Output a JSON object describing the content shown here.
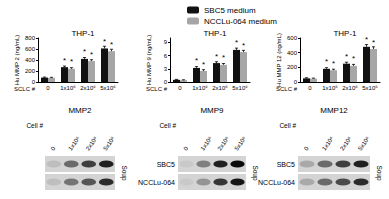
{
  "chart_data": [
    {
      "type": "bar",
      "title": "THP-1",
      "y_label": "Hu MMP 2 (ng/mL)",
      "x_label": "SCLC #",
      "categories": [
        "0",
        "1x10⁶",
        "2x10⁶",
        "5x10⁶"
      ],
      "series": [
        {
          "name": "SBC5 medium",
          "color": "#111111",
          "values": [
            80,
            270,
            420,
            610
          ],
          "errors": [
            10,
            20,
            25,
            40
          ],
          "significance": [
            null,
            "*",
            "*",
            "*"
          ]
        },
        {
          "name": "NCCLu-064 medium",
          "color": "#a6a6a6",
          "values": [
            75,
            240,
            380,
            560
          ],
          "errors": [
            10,
            20,
            25,
            35
          ],
          "significance": [
            null,
            "*",
            "*",
            "*"
          ]
        }
      ],
      "ylim": [
        0,
        800
      ],
      "yticks": [
        0,
        200,
        400,
        600,
        800
      ],
      "grid": false
    },
    {
      "type": "bar",
      "title": "THP-1",
      "y_label": "Hu MMP 9 (ng/mL)",
      "x_label": "SCLC #",
      "categories": [
        "0",
        "1x10⁶",
        "2x10⁶",
        "5x10⁶"
      ],
      "series": [
        {
          "name": "SBC5 medium",
          "color": "#111111",
          "values": [
            0.5,
            3.2,
            4.3,
            7.3
          ],
          "errors": [
            0.1,
            0.3,
            0.3,
            0.4
          ],
          "significance": [
            null,
            "*",
            "*",
            "*"
          ]
        },
        {
          "name": "NCCLu-064 medium",
          "color": "#a6a6a6",
          "values": [
            0.4,
            2.5,
            3.9,
            6.8
          ],
          "errors": [
            0.1,
            0.3,
            0.3,
            0.4
          ],
          "significance": [
            null,
            "*",
            "*",
            "*"
          ]
        }
      ],
      "ylim": [
        0,
        10
      ],
      "yticks": [
        0,
        3,
        6,
        9
      ],
      "grid": false,
      "legend": "top"
    },
    {
      "type": "bar",
      "title": "THP-1",
      "y_label": "Hu MMP 12 (ng/mL)",
      "x_label": "SCLC #",
      "categories": [
        "0",
        "1x10⁶",
        "2x10⁶",
        "5x10⁶"
      ],
      "series": [
        {
          "name": "SBC5 medium",
          "color": "#111111",
          "values": [
            50,
            180,
            250,
            480
          ],
          "errors": [
            8,
            15,
            20,
            30
          ],
          "significance": [
            null,
            "*",
            "*",
            "*"
          ]
        },
        {
          "name": "NCCLu-064 medium",
          "color": "#a6a6a6",
          "values": [
            45,
            160,
            220,
            450
          ],
          "errors": [
            8,
            15,
            20,
            30
          ],
          "significance": [
            null,
            "*",
            "*",
            "*"
          ]
        }
      ],
      "ylim": [
        0,
        600
      ],
      "yticks": [
        0,
        200,
        400,
        600
      ],
      "grid": false
    }
  ],
  "blots": [
    {
      "title": "MMP2",
      "lane_label": "Cell #",
      "lanes": [
        "0",
        "1x10⁶",
        "2x10⁶",
        "5x10⁶"
      ],
      "side_label": "Soup",
      "rows": [
        {
          "intensity": [
            0.1,
            0.5,
            0.7,
            0.85
          ]
        },
        {
          "intensity": [
            0.1,
            0.45,
            0.6,
            0.8
          ]
        }
      ]
    },
    {
      "title": "MMP9",
      "lane_label": "Cell #",
      "lanes": [
        "0",
        "1x10⁶",
        "2x10⁶",
        "5x10⁶"
      ],
      "side_label": "Soup",
      "rows": [
        {
          "label": "SBC5",
          "intensity": [
            0.05,
            0.4,
            0.85,
            0.95
          ]
        },
        {
          "label": "NCCLu-064",
          "intensity": [
            0.05,
            0.3,
            0.75,
            0.9
          ]
        }
      ]
    },
    {
      "title": "MMP12",
      "lane_label": "Cell #",
      "lanes": [
        "0",
        "1x10⁶",
        "2x10⁶",
        "5x10⁶"
      ],
      "side_label": "Soup",
      "rows": [
        {
          "label": "SBC5",
          "intensity": [
            0.2,
            0.5,
            0.7,
            0.85
          ]
        },
        {
          "label": "NCCLu-064",
          "intensity": [
            0.2,
            0.5,
            0.65,
            0.8
          ]
        }
      ]
    }
  ]
}
